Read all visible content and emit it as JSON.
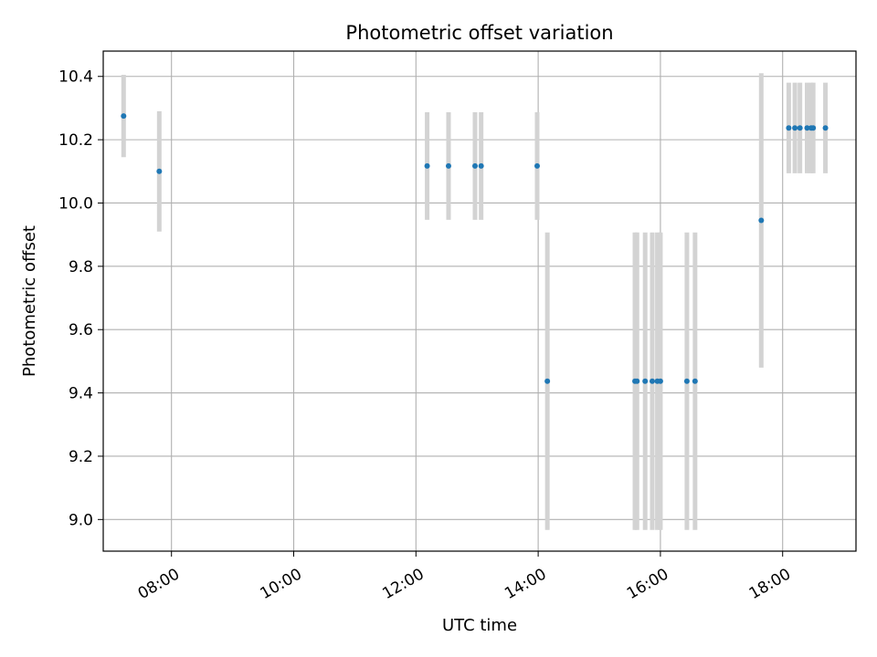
{
  "chart_data": {
    "type": "scatter",
    "title": "Photometric offset variation",
    "xlabel": "UTC time",
    "ylabel": "Photometric offset",
    "x_format": "time",
    "x_ticks": [
      "08:00",
      "10:00",
      "12:00",
      "14:00",
      "16:00",
      "18:00"
    ],
    "y_ticks": [
      9.0,
      9.2,
      9.4,
      9.6,
      9.8,
      10.0,
      10.2,
      10.4
    ],
    "xlim": [
      "06:53",
      "19:12"
    ],
    "ylim": [
      8.9,
      10.48
    ],
    "grid": true,
    "colors": {
      "point": "#1f77b4",
      "errorbar": "#d3d3d3"
    },
    "points": [
      {
        "x": "07:13",
        "y": 10.275,
        "err": 0.13
      },
      {
        "x": "07:48",
        "y": 10.1,
        "err": 0.19
      },
      {
        "x": "12:11",
        "y": 10.117,
        "err": 0.17
      },
      {
        "x": "12:32",
        "y": 10.117,
        "err": 0.17
      },
      {
        "x": "12:58",
        "y": 10.117,
        "err": 0.17
      },
      {
        "x": "13:04",
        "y": 10.117,
        "err": 0.17
      },
      {
        "x": "13:59",
        "y": 10.117,
        "err": 0.17
      },
      {
        "x": "14:09",
        "y": 9.437,
        "err": 0.47
      },
      {
        "x": "15:35",
        "y": 9.437,
        "err": 0.47
      },
      {
        "x": "15:37",
        "y": 9.437,
        "err": 0.47
      },
      {
        "x": "15:45",
        "y": 9.437,
        "err": 0.47
      },
      {
        "x": "15:52",
        "y": 9.437,
        "err": 0.47
      },
      {
        "x": "15:57",
        "y": 9.437,
        "err": 0.47
      },
      {
        "x": "16:00",
        "y": 9.437,
        "err": 0.47
      },
      {
        "x": "16:26",
        "y": 9.437,
        "err": 0.47
      },
      {
        "x": "16:34",
        "y": 9.437,
        "err": 0.47
      },
      {
        "x": "17:39",
        "y": 9.945,
        "err": 0.465
      },
      {
        "x": "18:06",
        "y": 10.237,
        "err": 0.143
      },
      {
        "x": "18:12",
        "y": 10.237,
        "err": 0.143
      },
      {
        "x": "18:17",
        "y": 10.237,
        "err": 0.143
      },
      {
        "x": "18:24",
        "y": 10.237,
        "err": 0.143
      },
      {
        "x": "18:28",
        "y": 10.237,
        "err": 0.143
      },
      {
        "x": "18:30",
        "y": 10.237,
        "err": 0.143
      },
      {
        "x": "18:42",
        "y": 10.237,
        "err": 0.143
      }
    ]
  }
}
